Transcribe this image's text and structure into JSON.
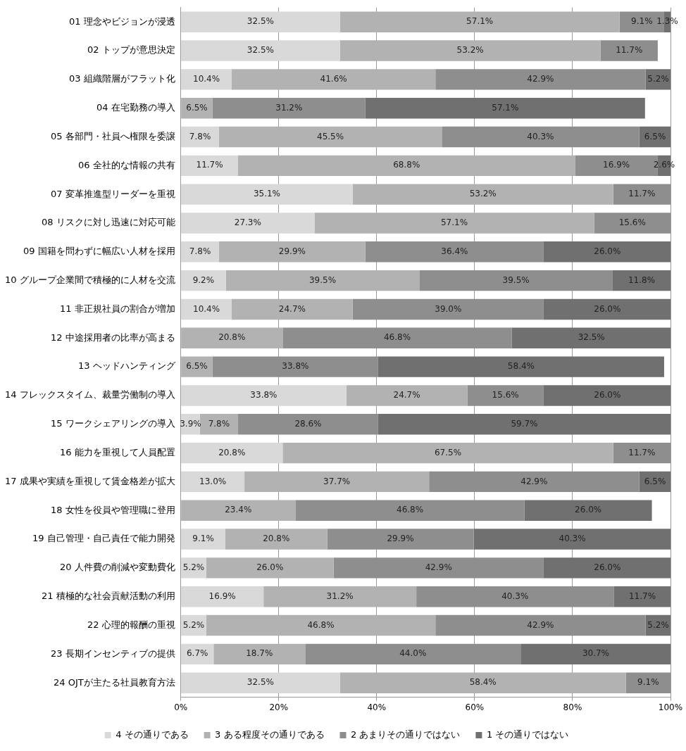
{
  "chart_data": {
    "type": "bar",
    "orientation": "horizontal",
    "stacked": true,
    "grid": "x",
    "legend": "bottom",
    "categories": [
      "01 理念やビジョンが浸透",
      "02 トップが意思決定",
      "03 組織階層がフラット化",
      "04 在宅勤務の導入",
      "05 各部門・社員へ権限を委譲",
      "06 全社的な情報の共有",
      "07 変革推進型リーダーを重視",
      "08 リスクに対し迅速に対応可能",
      "09 国籍を問わずに幅広い人材を採用",
      "10 グループ企業間で積極的に人材を交流",
      "11 非正規社員の割合が増加",
      "12 中途採用者の比率が高まる",
      "13 ヘッドハンティング",
      "14 フレックスタイム、裁量労働制の導入",
      "15 ワークシェアリングの導入",
      "16 能力を重視して人員配置",
      "17 成果や実績を重視して賃金格差が拡大",
      "18 女性を役員や管理職に登用",
      "19 自己管理・自己責任で能力開発",
      "20 人件費の削減や変動費化",
      "21 積極的な社会貢献活動の利用",
      "22 心理的報酬の重視",
      "23 長期インセンティブの提供",
      "24 OJTが主たる社員教育方法"
    ],
    "xlim": [
      0,
      100
    ],
    "xticks": [
      {
        "value": 0,
        "label": "0%"
      },
      {
        "value": 20,
        "label": "20%"
      },
      {
        "value": 40,
        "label": "40%"
      },
      {
        "value": 60,
        "label": "60%"
      },
      {
        "value": 80,
        "label": "80%"
      },
      {
        "value": 100,
        "label": "100%"
      }
    ],
    "series": [
      {
        "name": "4 その通りである",
        "color": "#d9d9d9",
        "values": [
          32.5,
          32.5,
          10.4,
          null,
          7.8,
          11.7,
          35.1,
          27.3,
          7.8,
          9.2,
          10.4,
          null,
          null,
          33.8,
          3.9,
          20.8,
          13.0,
          null,
          9.1,
          5.2,
          16.9,
          5.2,
          6.7,
          32.5
        ],
        "value_labels": [
          "32.5%",
          "32.5%",
          "10.4%",
          null,
          "7.8%",
          "11.7%",
          "35.1%",
          "27.3%",
          "7.8%",
          "9.2%",
          "10.4%",
          null,
          null,
          "33.8%",
          "3.9%",
          "20.8%",
          "13.0%",
          null,
          "9.1%",
          "5.2%",
          "16.9%",
          "5.2%",
          "6.7%",
          "32.5%"
        ]
      },
      {
        "name": "3 ある程度その通りである",
        "color": "#b2b2b2",
        "values": [
          57.1,
          53.2,
          41.6,
          6.5,
          45.5,
          68.8,
          53.2,
          57.1,
          29.9,
          39.5,
          24.7,
          20.8,
          6.5,
          24.7,
          7.8,
          67.5,
          37.7,
          23.4,
          20.8,
          26.0,
          31.2,
          46.8,
          18.7,
          58.4
        ],
        "value_labels": [
          "57.1%",
          "53.2%",
          "41.6%",
          "6.5%",
          "45.5%",
          "68.8%",
          "53.2%",
          "57.1%",
          "29.9%",
          "39.5%",
          "24.7%",
          "20.8%",
          "6.5%",
          "24.7%",
          "7.8%",
          "67.5%",
          "37.7%",
          "23.4%",
          "20.8%",
          "26.0%",
          "31.2%",
          "46.8%",
          "18.7%",
          "58.4%"
        ]
      },
      {
        "name": "2 あまりその通りではない",
        "color": "#8e8e8e",
        "values": [
          9.1,
          11.7,
          42.9,
          31.2,
          40.3,
          16.9,
          11.7,
          15.6,
          36.4,
          39.5,
          39.0,
          46.8,
          33.8,
          15.6,
          28.6,
          11.7,
          42.9,
          46.8,
          29.9,
          42.9,
          40.3,
          42.9,
          44.0,
          9.1
        ],
        "value_labels": [
          "9.1%",
          "11.7%",
          "42.9%",
          "31.2%",
          "40.3%",
          "16.9%",
          "11.7%",
          "15.6%",
          "36.4%",
          "39.5%",
          "39.0%",
          "46.8%",
          "33.8%",
          "15.6%",
          "28.6%",
          "11.7%",
          "42.9%",
          "46.8%",
          "29.9%",
          "42.9%",
          "40.3%",
          "42.9%",
          "44.0%",
          "9.1%"
        ]
      },
      {
        "name": "1 その通りではない",
        "color": "#707070",
        "values": [
          1.3,
          null,
          5.2,
          57.1,
          6.5,
          2.6,
          null,
          null,
          26.0,
          11.8,
          26.0,
          32.5,
          58.4,
          26.0,
          59.7,
          null,
          6.5,
          26.0,
          40.3,
          26.0,
          11.7,
          5.2,
          30.7,
          null
        ],
        "value_labels": [
          "1.3%",
          null,
          "5.2%",
          "57.1%",
          "6.5%",
          "2.6%",
          null,
          null,
          "26.0%",
          "11.8%",
          "26.0%",
          "32.5%",
          "58.4%",
          "26.0%",
          "59.7%",
          null,
          "6.5%",
          "26.0%",
          "40.3%",
          "26.0%",
          "11.7%",
          "5.2%",
          "30.7%",
          null
        ]
      }
    ]
  }
}
